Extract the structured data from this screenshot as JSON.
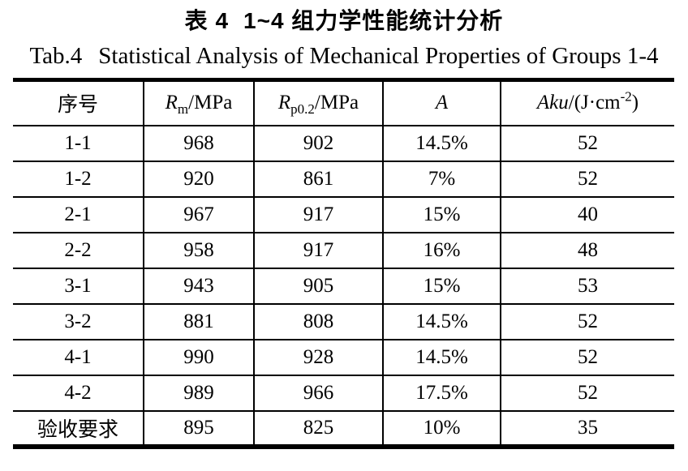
{
  "page": {
    "background": "#ffffff",
    "text_color": "#000000",
    "line_color": "#000000"
  },
  "caption": {
    "zh_label": "表 4",
    "zh_text": "1~4 组力学性能统计分析",
    "en_label": "Tab.4",
    "en_text": "Statistical Analysis of Mechanical Properties of Groups 1-4"
  },
  "table": {
    "columns": [
      {
        "label": "序号"
      },
      {
        "symbol": "R",
        "sub": "m",
        "unit": "/MPa"
      },
      {
        "symbol": "R",
        "sub": "p0.2",
        "unit": "/MPa"
      },
      {
        "symbol": "A"
      },
      {
        "symbol": "Aku",
        "unit_prefix": "/(J·cm",
        "sup": "-2",
        "unit_suffix": ")"
      }
    ],
    "rows": [
      {
        "cells": [
          "1-1",
          "968",
          "902",
          "14.5%",
          "52"
        ]
      },
      {
        "cells": [
          "1-2",
          "920",
          "861",
          "7%",
          "52"
        ]
      },
      {
        "cells": [
          "2-1",
          "967",
          "917",
          "15%",
          "40"
        ]
      },
      {
        "cells": [
          "2-2",
          "958",
          "917",
          "16%",
          "48"
        ]
      },
      {
        "cells": [
          "3-1",
          "943",
          "905",
          "15%",
          "53"
        ]
      },
      {
        "cells": [
          "3-2",
          "881",
          "808",
          "14.5%",
          "52"
        ]
      },
      {
        "cells": [
          "4-1",
          "990",
          "928",
          "14.5%",
          "52"
        ]
      },
      {
        "cells": [
          "4-2",
          "989",
          "966",
          "17.5%",
          "52"
        ]
      },
      {
        "cells": [
          "验收要求",
          "895",
          "825",
          "10%",
          "35"
        ]
      }
    ]
  },
  "chart_data": {
    "type": "table",
    "title": "表 4 1~4 组力学性能统计分析 / Tab.4 Statistical Analysis of Mechanical Properties of Groups 1-4",
    "columns": [
      "序号",
      "Rm/MPa",
      "Rp0.2/MPa",
      "A",
      "Aku/(J·cm-2)"
    ],
    "rows": [
      [
        "1-1",
        968,
        902,
        "14.5%",
        52
      ],
      [
        "1-2",
        920,
        861,
        "7%",
        52
      ],
      [
        "2-1",
        967,
        917,
        "15%",
        40
      ],
      [
        "2-2",
        958,
        917,
        "16%",
        48
      ],
      [
        "3-1",
        943,
        905,
        "15%",
        53
      ],
      [
        "3-2",
        881,
        808,
        "14.5%",
        52
      ],
      [
        "4-1",
        990,
        928,
        "14.5%",
        52
      ],
      [
        "4-2",
        989,
        966,
        "17.5%",
        52
      ],
      [
        "验收要求",
        895,
        825,
        "10%",
        35
      ]
    ]
  }
}
